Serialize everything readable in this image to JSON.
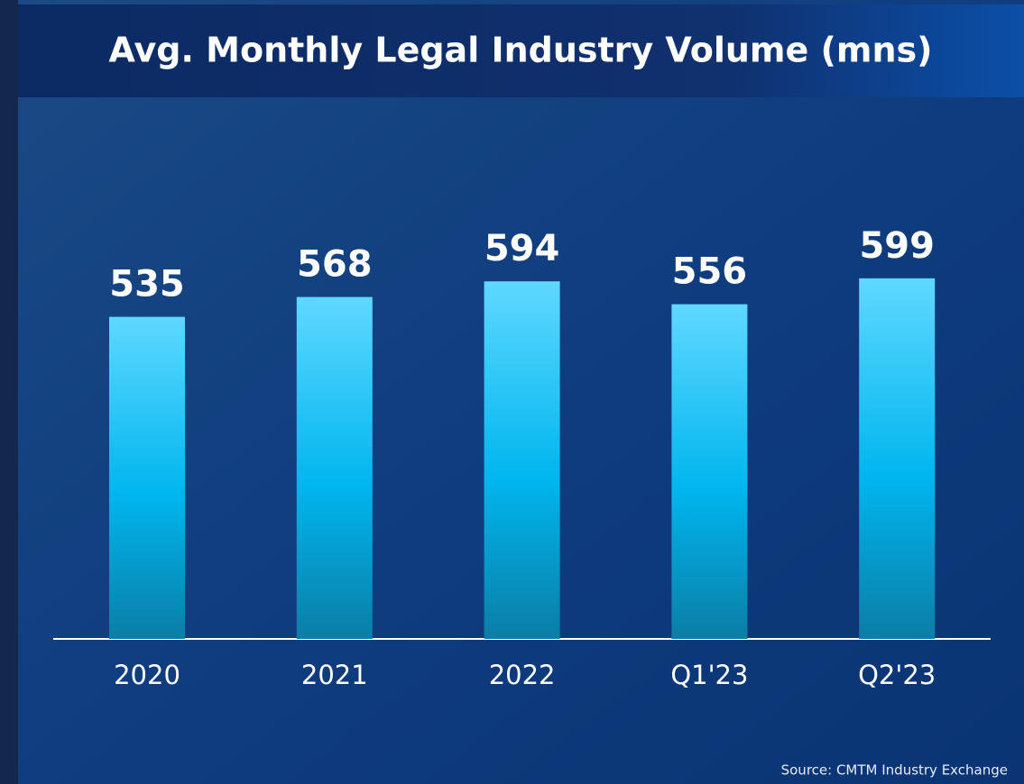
{
  "chart_data": {
    "type": "bar",
    "title": "Avg. Monthly Legal Industry Volume (mns)",
    "categories": [
      "2020",
      "2021",
      "2022",
      "Q1'23",
      "Q2'23"
    ],
    "values": [
      535,
      568,
      594,
      556,
      599
    ],
    "source": "Source: CMTM Industry Exchange"
  }
}
